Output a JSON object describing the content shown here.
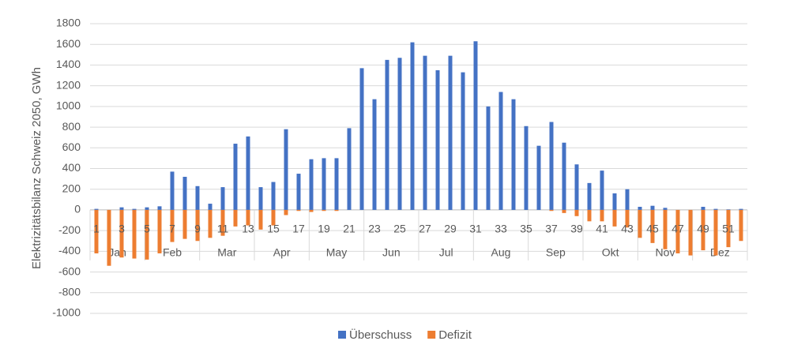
{
  "chart_data": {
    "type": "bar",
    "stacked": true,
    "y_label": "Elektrizitätsbilanz Schweiz 2050, GWh",
    "categories": [
      "1",
      null,
      "3",
      null,
      "5",
      null,
      "7",
      null,
      "9",
      null,
      "11",
      null,
      "13",
      null,
      "15",
      null,
      "17",
      null,
      "19",
      null,
      "21",
      null,
      "23",
      null,
      "25",
      null,
      "27",
      null,
      "29",
      null,
      "31",
      null,
      "33",
      null,
      "35",
      null,
      "37",
      null,
      "39",
      null,
      "41",
      null,
      "43",
      null,
      "45",
      null,
      "47",
      null,
      "49",
      null,
      "51",
      null
    ],
    "months": [
      "Jan",
      "Feb",
      "Mar",
      "Apr",
      "May",
      "Jun",
      "Jul",
      "Aug",
      "Sep",
      "Okt",
      "Nov",
      "Dez"
    ],
    "series": [
      {
        "name": "Überschuss",
        "color": "#4472c4",
        "values": [
          10,
          0,
          25,
          10,
          25,
          35,
          370,
          320,
          230,
          60,
          220,
          640,
          710,
          220,
          270,
          780,
          350,
          490,
          500,
          500,
          790,
          1370,
          1070,
          1450,
          1470,
          1620,
          1490,
          1350,
          1490,
          1330,
          1630,
          1000,
          1140,
          1070,
          810,
          620,
          850,
          650,
          440,
          260,
          380,
          160,
          200,
          30,
          40,
          20,
          0,
          0,
          30,
          10,
          5,
          10
        ]
      },
      {
        "name": "Defizit",
        "color": "#ed7d31",
        "values": [
          -420,
          -540,
          -460,
          -470,
          -480,
          -420,
          -310,
          -280,
          -300,
          -270,
          -250,
          -160,
          -150,
          -190,
          -150,
          -50,
          -10,
          -20,
          -10,
          -10,
          0,
          0,
          0,
          0,
          0,
          0,
          0,
          0,
          0,
          0,
          0,
          0,
          0,
          0,
          0,
          0,
          -10,
          -30,
          -60,
          -110,
          -110,
          -160,
          -170,
          -270,
          -320,
          -380,
          -420,
          -440,
          -390,
          -440,
          -360,
          -300
        ]
      }
    ],
    "ylim": [
      -1000,
      1800
    ],
    "yticks": [
      -1000,
      -800,
      -600,
      -400,
      -200,
      0,
      200,
      400,
      600,
      800,
      1000,
      1200,
      1400,
      1600,
      1800
    ],
    "grid": true,
    "legend": "bottom"
  }
}
